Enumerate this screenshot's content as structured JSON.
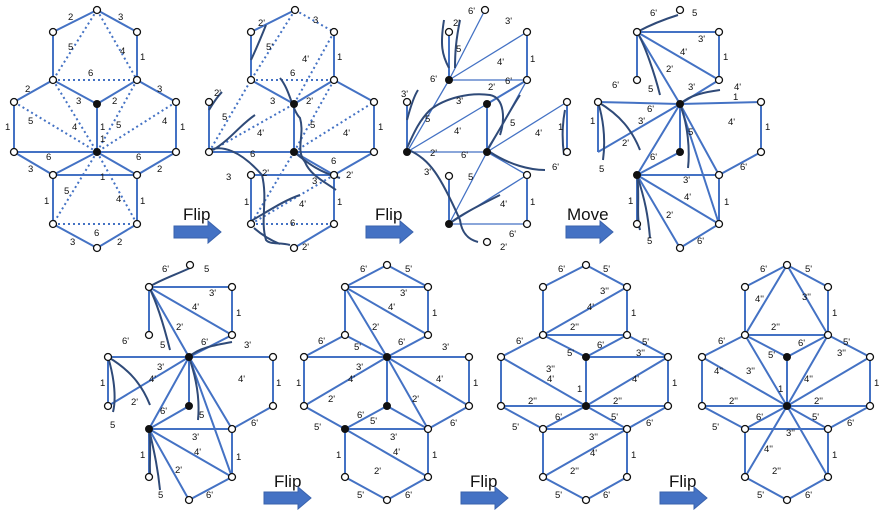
{
  "operations": [
    "Flip",
    "Flip",
    "Move",
    "Flip",
    "Flip",
    "Flip"
  ],
  "panel1": {
    "edge_labels": [
      "2",
      "3",
      "5",
      "4",
      "1",
      "2",
      "6",
      "3",
      "5",
      "3",
      "2",
      "1",
      "1",
      "4",
      "5",
      "4",
      "1",
      "1",
      "6",
      "6",
      "3",
      "2",
      "5",
      "1",
      "4",
      "1",
      "1",
      "3",
      "6",
      "2"
    ]
  },
  "panel2": {
    "edge_labels": [
      "2'",
      "3",
      "5'",
      "4'",
      "1",
      "6",
      "3",
      "2'",
      "5",
      "2'",
      "4'",
      "4'",
      "1",
      "6",
      "6",
      "3",
      "2'",
      "5",
      "3",
      "1",
      "4'",
      "1",
      "6",
      "2'",
      "2'"
    ]
  },
  "panel3": {
    "edge_labels": [
      "6'",
      "3'",
      "2'",
      "5",
      "4'",
      "3'",
      "1",
      "6'",
      "2'",
      "6'",
      "3'",
      "5",
      "4'",
      "5",
      "4'",
      "6'",
      "2'",
      "1",
      "3'",
      "6'",
      "5",
      "4'",
      "1",
      "6'",
      "2'"
    ]
  },
  "panel4": {
    "edge_labels": [
      "6'",
      "5",
      "3'",
      "4'",
      "1",
      "2'",
      "6'",
      "5",
      "3'",
      "4'",
      "1",
      "6'",
      "3'",
      "4'",
      "1",
      "2'",
      "5",
      "6'",
      "3'",
      "4'",
      "1",
      "2'",
      "6'",
      "1",
      "1",
      "5",
      "5",
      "6'"
    ]
  },
  "panel5": {
    "edge_labels": [
      "6'",
      "5",
      "3'",
      "4'",
      "1",
      "2'",
      "6'",
      "5",
      "6'",
      "3'",
      "3'",
      "4'",
      "1",
      "4'",
      "2'",
      "6'",
      "1",
      "5",
      "5",
      "6'",
      "3'",
      "4'",
      "1",
      "2'",
      "1",
      "5",
      "6'"
    ]
  },
  "panel6": {
    "edge_labels": [
      "6'",
      "5'",
      "3'",
      "4'",
      "1",
      "2'",
      "6'",
      "5'",
      "6'",
      "3'",
      "3'",
      "4'",
      "4'",
      "1",
      "1",
      "2'",
      "2'",
      "6'",
      "5'",
      "5'",
      "6'",
      "3'",
      "4'",
      "1",
      "2'",
      "1",
      "5'",
      "6'"
    ]
  },
  "panel7": {
    "edge_labels": [
      "6'",
      "5'",
      "3''",
      "4'",
      "1",
      "2''",
      "6'",
      "5'",
      "6'",
      "5'",
      "3''",
      "3''",
      "4'",
      "4'",
      "1",
      "1",
      "2''",
      "2''",
      "6'",
      "5'",
      "5'",
      "6'",
      "3''",
      "4'",
      "1",
      "2''",
      "5'",
      "6'"
    ]
  },
  "panel8": {
    "edge_labels": [
      "6'",
      "5'",
      "4''",
      "3''",
      "1",
      "2''",
      "6'",
      "5'",
      "6'",
      "5'",
      "3''",
      "3''",
      "4''",
      "4''",
      "1",
      "1",
      "2''",
      "2''",
      "6'",
      "5'",
      "5'",
      "6'",
      "3''",
      "4''",
      "1",
      "2''",
      "5'",
      "6'"
    ]
  }
}
